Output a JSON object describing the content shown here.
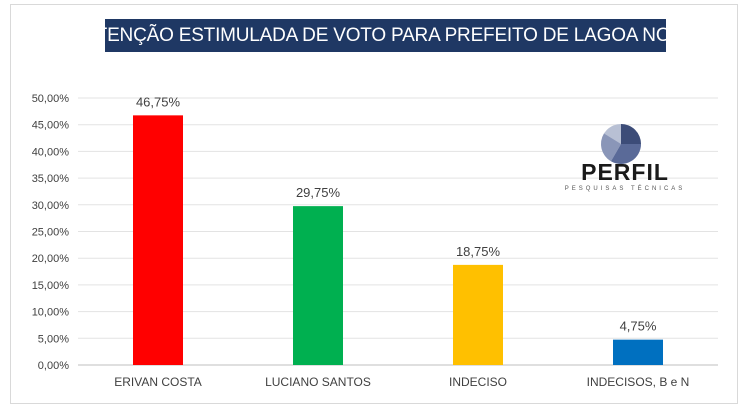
{
  "title": "INTENÇÃO ESTIMULADA DE VOTO PARA PREFEITO DE LAGOA NOVA",
  "logo": {
    "name": "PERFIL",
    "tagline": "PESQUISAS TÉCNICAS"
  },
  "chart_data": {
    "type": "bar",
    "title": "INTENÇÃO ESTIMULADA DE VOTO PARA PREFEITO DE LAGOA NOVA",
    "categories": [
      "ERIVAN COSTA",
      "LUCIANO SANTOS",
      "INDECISO",
      "INDECISOS, B e N"
    ],
    "values": [
      46.75,
      29.75,
      18.75,
      4.75
    ],
    "data_labels": [
      "46,75%",
      "29,75%",
      "18,75%",
      "4,75%"
    ],
    "colors": [
      "#ff0000",
      "#00b050",
      "#ffc000",
      "#0070c0"
    ],
    "ylim": [
      0,
      50
    ],
    "y_ticks": [
      0,
      5,
      10,
      15,
      20,
      25,
      30,
      35,
      40,
      45,
      50
    ],
    "y_tick_labels": [
      "0,00%",
      "5,00%",
      "10,00%",
      "15,00%",
      "20,00%",
      "25,00%",
      "30,00%",
      "35,00%",
      "40,00%",
      "45,00%",
      "50,00%"
    ],
    "grid": true,
    "legend": "none"
  }
}
